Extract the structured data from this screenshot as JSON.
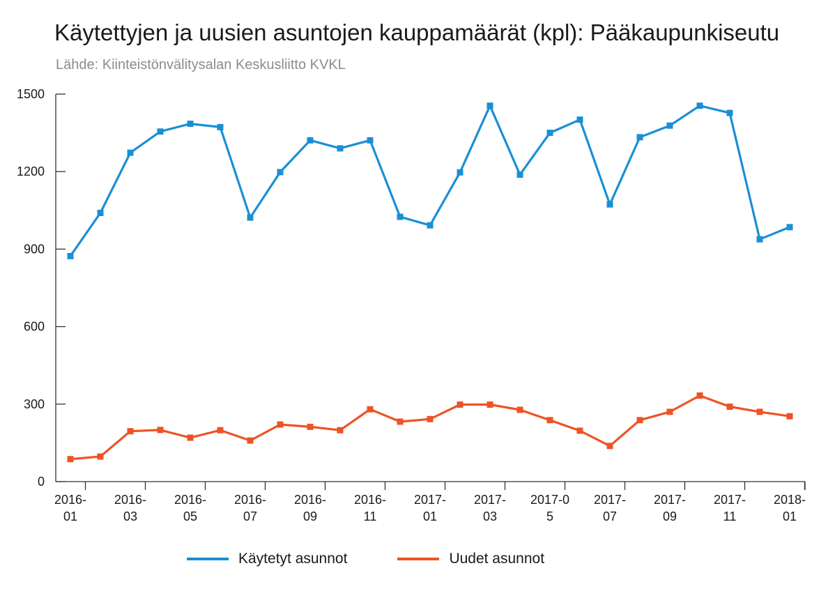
{
  "header": {
    "title": "Käytettyjen ja uusien asuntojen kauppamäärät (kpl): Pääkaupunkiseutu",
    "subtitle": "Lähde: Kiinteistönvälitysalan Keskusliitto KVKL"
  },
  "chart_data": {
    "type": "line",
    "title": "Käytettyjen ja uusien asuntojen kauppamäärät (kpl): Pääkaupunkiseutu",
    "subtitle": "Lähde: Kiinteistönvälitysalan Keskusliitto KVKL",
    "xlabel": "",
    "ylabel": "",
    "ylim": [
      0,
      1500
    ],
    "yticks": [
      0,
      300,
      600,
      900,
      1200,
      1500
    ],
    "grid": false,
    "legend_position": "bottom",
    "x": [
      "2016-01",
      "2016-02",
      "2016-03",
      "2016-04",
      "2016-05",
      "2016-06",
      "2016-07",
      "2016-08",
      "2016-09",
      "2016-10",
      "2016-11",
      "2016-12",
      "2017-01",
      "2017-02",
      "2017-03",
      "2017-04",
      "2017-05",
      "2017-06",
      "2017-07",
      "2017-08",
      "2017-09",
      "2017-10",
      "2017-11",
      "2017-12",
      "2018-01"
    ],
    "xtick_labels": [
      {
        "index": 0,
        "lines": [
          "2016-",
          "01"
        ]
      },
      {
        "index": 2,
        "lines": [
          "2016-",
          "03"
        ]
      },
      {
        "index": 4,
        "lines": [
          "2016-",
          "05"
        ]
      },
      {
        "index": 6,
        "lines": [
          "2016-",
          "07"
        ]
      },
      {
        "index": 8,
        "lines": [
          "2016-",
          "09"
        ]
      },
      {
        "index": 10,
        "lines": [
          "2016-",
          "11"
        ]
      },
      {
        "index": 12,
        "lines": [
          "2017-",
          "01"
        ]
      },
      {
        "index": 14,
        "lines": [
          "2017-",
          "03"
        ]
      },
      {
        "index": 16,
        "lines": [
          "2017-0",
          "5"
        ]
      },
      {
        "index": 18,
        "lines": [
          "2017-",
          "07"
        ]
      },
      {
        "index": 20,
        "lines": [
          "2017-",
          "09"
        ]
      },
      {
        "index": 22,
        "lines": [
          "2017-",
          "11"
        ]
      },
      {
        "index": 24,
        "lines": [
          "2018-",
          "01"
        ]
      }
    ],
    "series": [
      {
        "name": "Käytetyt asunnot",
        "color": "#1a8fd4",
        "values": [
          873,
          1040,
          1273,
          1355,
          1385,
          1372,
          1022,
          1198,
          1321,
          1290,
          1321,
          1025,
          992,
          1197,
          1455,
          1188,
          1350,
          1401,
          1073,
          1333,
          1378,
          1455,
          1427,
          938,
          985
        ]
      },
      {
        "name": "Uudet asunnot",
        "color": "#ee5325",
        "values": [
          87,
          97,
          195,
          200,
          170,
          199,
          159,
          221,
          212,
          199,
          280,
          232,
          242,
          298,
          298,
          278,
          238,
          197,
          138,
          238,
          270,
          333,
          290,
          270,
          253
        ]
      }
    ]
  }
}
